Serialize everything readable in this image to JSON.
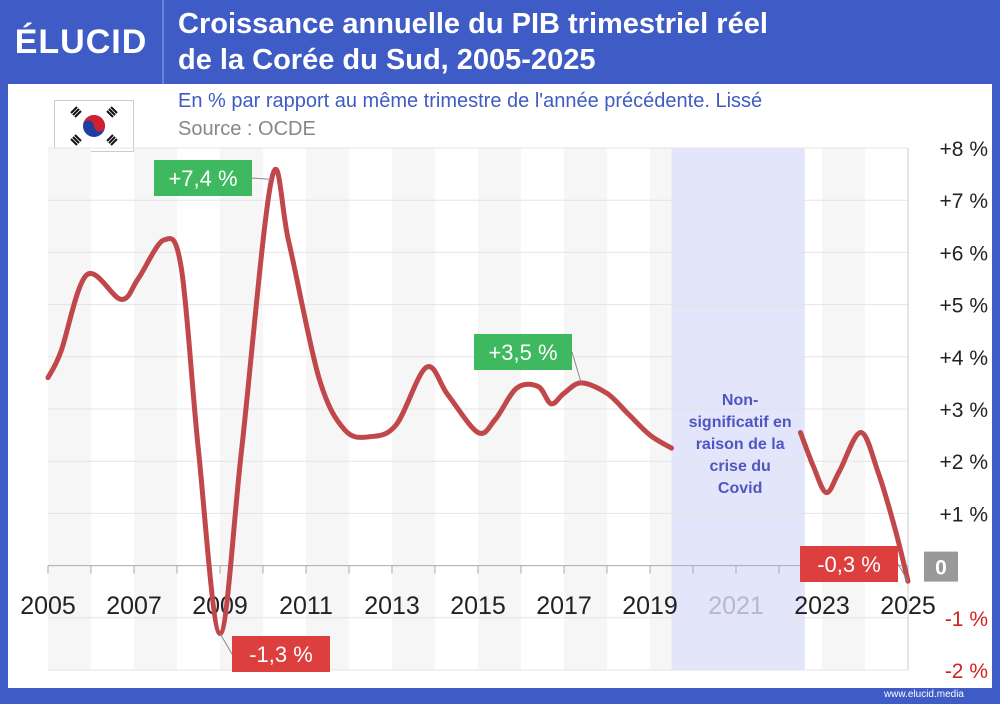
{
  "brand": "ÉLUCID",
  "title_line1": "Croissance annuelle du PIB trimestriel réel",
  "title_line2": "de la Corée du Sud, 2005-2025",
  "subtitle": "En % par rapport au même trimestre de l'année précédente. Lissé",
  "source": "Source : OCDE",
  "footer": "www.elucid.media",
  "colors": {
    "header": "#3f5bc6",
    "line": "#c0474a",
    "positive_label": "#3fb95f",
    "negative_label": "#dd3f3f",
    "covid_band": "#e3e5fa"
  },
  "chart_data": {
    "type": "line",
    "title": "Croissance annuelle du PIB trimestriel réel de la Corée du Sud, 2005-2025",
    "xlim": [
      2005,
      2025
    ],
    "ylim": [
      -2,
      8
    ],
    "x_ticks": [
      "2005",
      "2007",
      "2009",
      "2011",
      "2013",
      "2015",
      "2017",
      "2019",
      "2021",
      "2023",
      "2025"
    ],
    "y_ticks": [
      {
        "v": 8,
        "label": "+8 %"
      },
      {
        "v": 7,
        "label": "+7 %"
      },
      {
        "v": 6,
        "label": "+6 %"
      },
      {
        "v": 5,
        "label": "+5 %"
      },
      {
        "v": 4,
        "label": "+4 %"
      },
      {
        "v": 3,
        "label": "+3 %"
      },
      {
        "v": 2,
        "label": "+2 %"
      },
      {
        "v": 1,
        "label": "+1 %"
      },
      {
        "v": 0,
        "label": "0"
      },
      {
        "v": -1,
        "label": "-1 %"
      },
      {
        "v": -2,
        "label": "-2 %"
      }
    ],
    "grid": true,
    "series": [
      {
        "segments": [
          [
            [
              2005.0,
              3.6
            ],
            [
              2005.3,
              4.1
            ],
            [
              2005.9,
              5.57
            ],
            [
              2006.7,
              5.1
            ],
            [
              2007.1,
              5.5
            ],
            [
              2007.7,
              6.24
            ],
            [
              2008.1,
              5.7
            ],
            [
              2008.5,
              2.2
            ],
            [
              2009.0,
              -1.3
            ],
            [
              2009.5,
              2.2
            ],
            [
              2010.2,
              7.4
            ],
            [
              2010.6,
              6.2
            ],
            [
              2011.3,
              3.6
            ],
            [
              2011.9,
              2.6
            ],
            [
              2012.5,
              2.47
            ],
            [
              2013.1,
              2.7
            ],
            [
              2013.8,
              3.8
            ],
            [
              2014.3,
              3.27
            ],
            [
              2015.0,
              2.55
            ],
            [
              2015.4,
              2.8
            ],
            [
              2015.9,
              3.4
            ],
            [
              2016.4,
              3.43
            ],
            [
              2016.7,
              3.1
            ],
            [
              2017.0,
              3.3
            ],
            [
              2017.4,
              3.5
            ],
            [
              2018.0,
              3.3
            ],
            [
              2018.5,
              2.9
            ],
            [
              2019.0,
              2.5
            ],
            [
              2019.5,
              2.25
            ]
          ],
          [
            [
              2022.5,
              2.55
            ],
            [
              2022.8,
              1.9
            ],
            [
              2023.1,
              1.4
            ],
            [
              2023.4,
              1.8
            ],
            [
              2023.9,
              2.55
            ],
            [
              2024.3,
              1.8
            ],
            [
              2024.7,
              0.7
            ],
            [
              2025.0,
              -0.3
            ]
          ]
        ]
      }
    ],
    "shaded_region": {
      "from": 2019.5,
      "to": 2022.6,
      "label": [
        "Non-",
        "significatif en",
        "raison de la",
        "crise du",
        "Covid"
      ]
    },
    "annotations": [
      {
        "x": 2010.2,
        "y": 7.4,
        "label": "+7,4 %",
        "kind": "positive"
      },
      {
        "x": 2009.0,
        "y": -1.3,
        "label": "-1,3 %",
        "kind": "negative"
      },
      {
        "x": 2017.4,
        "y": 3.5,
        "label": "+3,5 %",
        "kind": "positive"
      },
      {
        "x": 2025.0,
        "y": -0.3,
        "label": "-0,3 %",
        "kind": "negative"
      }
    ]
  }
}
